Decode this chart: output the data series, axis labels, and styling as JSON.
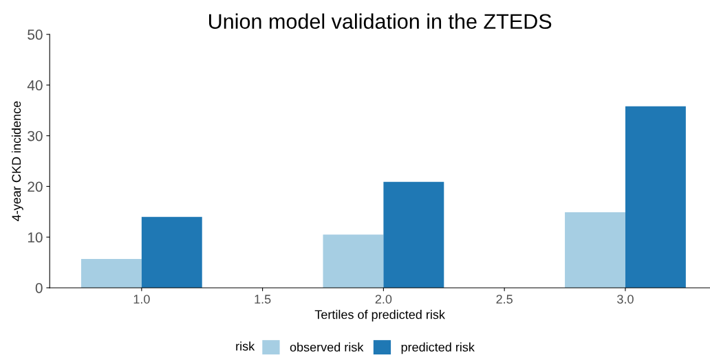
{
  "chart_data": {
    "type": "bar",
    "title": "Union model validation in the ZTEDS",
    "xlabel": "Tertiles of predicted risk",
    "ylabel": "4-year CKD incidence",
    "x": [
      1,
      2,
      3
    ],
    "series": [
      {
        "name": "observed risk",
        "color": "#a6cee3",
        "values": [
          5.7,
          10.5,
          14.9
        ]
      },
      {
        "name": "predicted risk",
        "color": "#1f78b4",
        "values": [
          14.0,
          20.9,
          35.8
        ]
      }
    ],
    "xlim": [
      0.62,
      3.35
    ],
    "xticks": [
      {
        "value": 1,
        "label": "1.0"
      },
      {
        "value": 1.5,
        "label": "1.5"
      },
      {
        "value": 2,
        "label": "2.0"
      },
      {
        "value": 2.5,
        "label": "2.5"
      },
      {
        "value": 3,
        "label": "3.0"
      }
    ],
    "ylim": [
      0,
      50
    ],
    "yticks": [
      0,
      10,
      20,
      30,
      40,
      50
    ],
    "legend_title": "risk",
    "legend": "bottom",
    "grid": false
  }
}
